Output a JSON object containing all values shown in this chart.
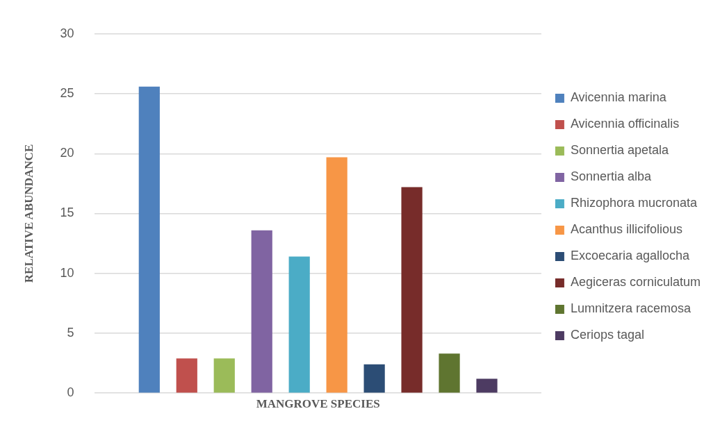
{
  "chart_data": {
    "type": "bar",
    "xlabel": "MANGROVE SPECIES",
    "ylabel": "RELATIVE ABUNDANCE",
    "categories": [
      null
    ],
    "series": [
      {
        "name": "Avicennia marina",
        "color": "#4f81bd",
        "values": [
          25.6
        ]
      },
      {
        "name": "Avicennia officinalis",
        "color": "#c0504d",
        "values": [
          2.9
        ]
      },
      {
        "name": "Sonnertia apetala",
        "color": "#9bbb59",
        "values": [
          2.9
        ]
      },
      {
        "name": "Sonnertia alba",
        "color": "#8064a2",
        "values": [
          13.6
        ]
      },
      {
        "name": "Rhizophora mucronata",
        "color": "#4bacc6",
        "values": [
          11.4
        ]
      },
      {
        "name": "Acanthus illicifolious",
        "color": "#f79646",
        "values": [
          19.7
        ]
      },
      {
        "name": "Excoecaria agallocha",
        "color": "#2c4d75",
        "values": [
          2.4
        ]
      },
      {
        "name": "Aegiceras corniculatum",
        "color": "#772c2a",
        "values": [
          17.2
        ]
      },
      {
        "name": "Lumnitzera racemosa",
        "color": "#5f7530",
        "values": [
          3.3
        ]
      },
      {
        "name": "Ceriops tagal",
        "color": "#4d3b62",
        "values": [
          1.2
        ]
      }
    ],
    "ylim": [
      0,
      30
    ],
    "yticks": [
      0,
      5,
      10,
      15,
      20,
      25,
      30
    ],
    "grid": "y",
    "legend": "right",
    "tick_labels": "y"
  }
}
